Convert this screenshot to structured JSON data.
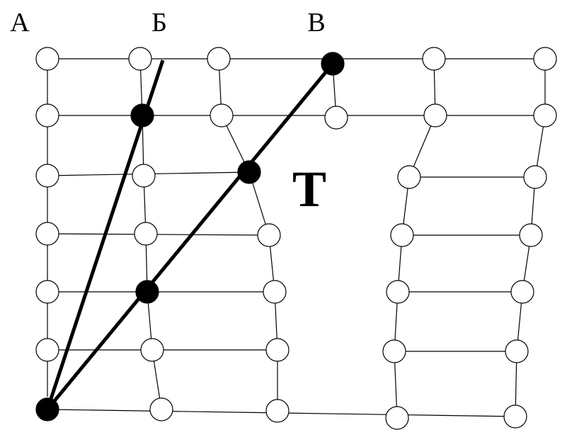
{
  "labels": [
    "А",
    "Б",
    "В",
    "Т"
  ]
}
